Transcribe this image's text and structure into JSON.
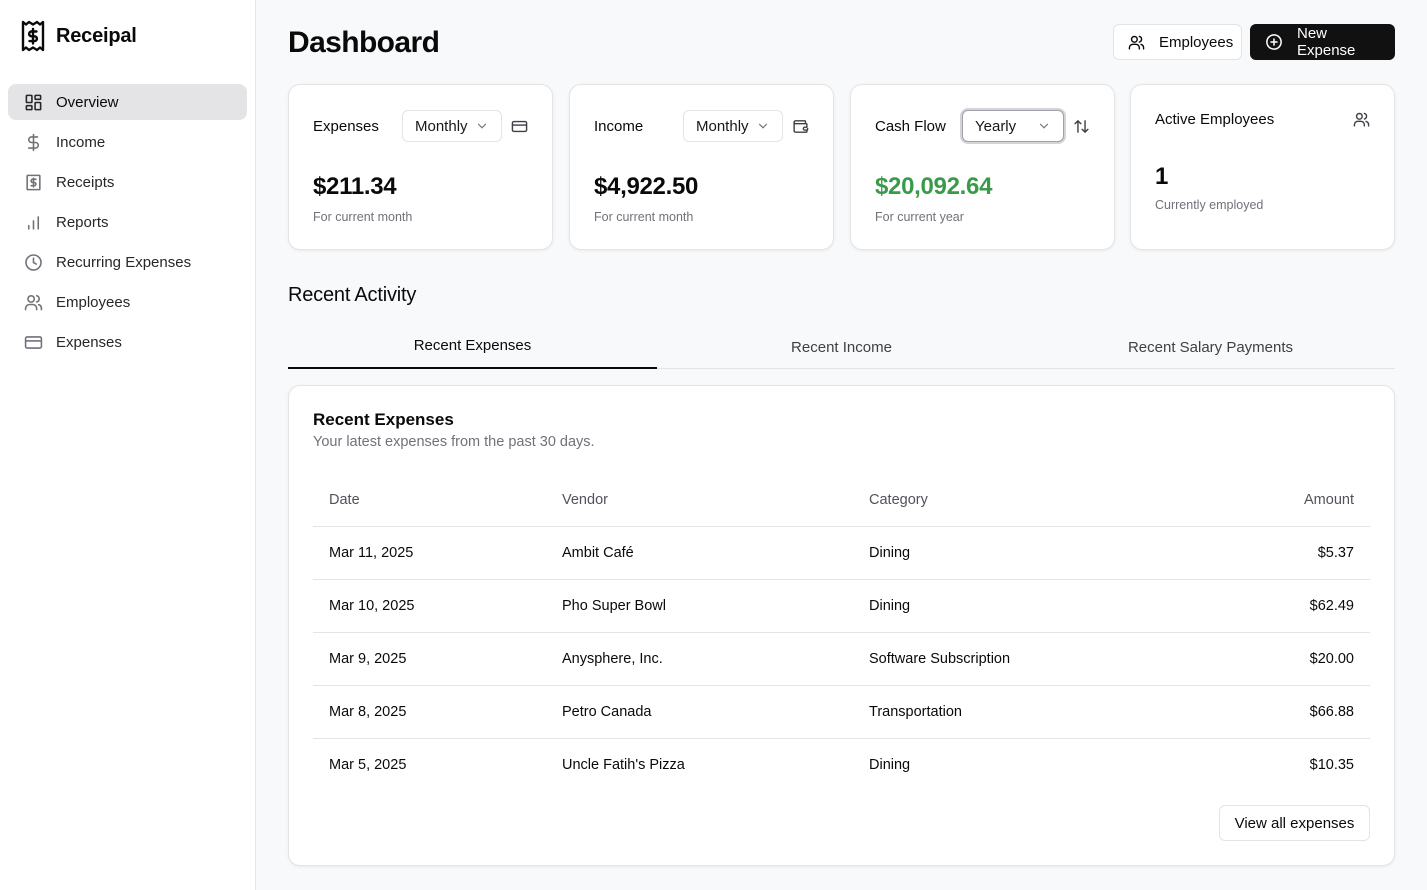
{
  "app": {
    "name": "Receipal"
  },
  "sidebar": {
    "items": [
      {
        "label": "Overview",
        "icon": "dashboard-icon",
        "active": true
      },
      {
        "label": "Income",
        "icon": "dollar-icon"
      },
      {
        "label": "Receipts",
        "icon": "receipt-icon"
      },
      {
        "label": "Reports",
        "icon": "bar-chart-icon"
      },
      {
        "label": "Recurring Expenses",
        "icon": "clock-icon"
      },
      {
        "label": "Employees",
        "icon": "users-icon"
      },
      {
        "label": "Expenses",
        "icon": "credit-card-icon"
      }
    ]
  },
  "header": {
    "title": "Dashboard",
    "employees_button": "Employees",
    "new_expense_button": "New Expense"
  },
  "stats": {
    "expenses": {
      "title": "Expenses",
      "period": "Monthly",
      "value": "$211.34",
      "sub": "For current month",
      "icon": "credit-card-icon"
    },
    "income": {
      "title": "Income",
      "period": "Monthly",
      "value": "$4,922.50",
      "sub": "For current month",
      "icon": "wallet-icon"
    },
    "cashflow": {
      "title": "Cash Flow",
      "period": "Yearly",
      "value": "$20,092.64",
      "sub": "For current year",
      "icon": "arrows-up-down-icon",
      "value_color": "#3a9a4a"
    },
    "employees": {
      "title": "Active Employees",
      "value": "1",
      "sub": "Currently employed",
      "icon": "users-icon"
    }
  },
  "recent": {
    "title": "Recent Activity",
    "tabs": [
      "Recent Expenses",
      "Recent Income",
      "Recent Salary Payments"
    ],
    "active_tab": 0,
    "card": {
      "title": "Recent Expenses",
      "description": "Your latest expenses from the past 30 days.",
      "columns": [
        "Date",
        "Vendor",
        "Category",
        "Amount"
      ],
      "rows": [
        [
          "Mar 11, 2025",
          "Ambit Café",
          "Dining",
          "$5.37"
        ],
        [
          "Mar 10, 2025",
          "Pho Super Bowl",
          "Dining",
          "$62.49"
        ],
        [
          "Mar 9, 2025",
          "Anysphere, Inc.",
          "Software Subscription",
          "$20.00"
        ],
        [
          "Mar 8, 2025",
          "Petro Canada",
          "Transportation",
          "$66.88"
        ],
        [
          "Mar 5, 2025",
          "Uncle Fatih's Pizza",
          "Dining",
          "$10.35"
        ]
      ],
      "view_all": "View all expenses"
    }
  }
}
